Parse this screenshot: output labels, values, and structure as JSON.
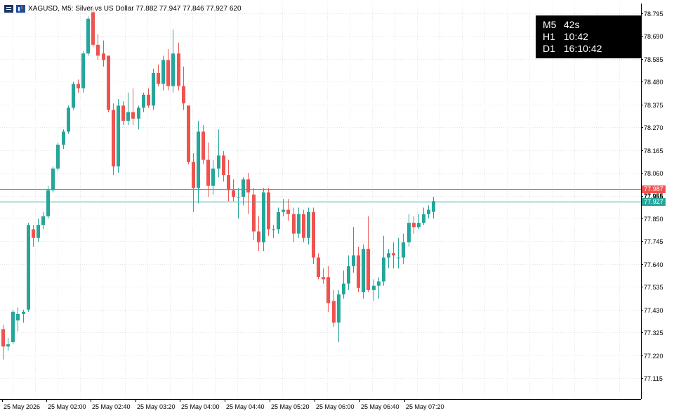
{
  "header": {
    "icons": [
      "menu-icon",
      "chart-icon"
    ],
    "title": "XAGUSD, M5:  Silver vs US Dollar  77.882 77.947 77.846 77.927  620"
  },
  "timer": {
    "rows": [
      {
        "label": "M5",
        "value": "42s"
      },
      {
        "label": "H1",
        "value": "10:42"
      },
      {
        "label": "D1",
        "value": "16:10:42"
      }
    ]
  },
  "price_lines": {
    "ask": {
      "value": "77.987",
      "color": "#ef5350"
    },
    "bid": {
      "value": "77.927",
      "color": "#26a69a"
    },
    "extra_label": "77.955"
  },
  "colors": {
    "bull": "#26a69a",
    "bear": "#ef5350",
    "grid": "#e6e6e6",
    "axis": "#000000",
    "timer_bg": "#000000"
  },
  "chart_data": {
    "type": "candlestick",
    "symbol": "XAGUSD",
    "timeframe": "M5",
    "ylim": [
      77.05,
      78.82
    ],
    "y_ticks": [
      "78.795",
      "78.690",
      "78.585",
      "78.480",
      "78.375",
      "78.270",
      "78.165",
      "78.060",
      "77.955",
      "77.850",
      "77.745",
      "77.640",
      "77.535",
      "77.430",
      "77.325",
      "77.220",
      "77.115"
    ],
    "x_ticks": [
      "25 May 2026",
      "25 May 02:00",
      "25 May 02:40",
      "25 May 03:20",
      "25 May 04:00",
      "25 May 04:40",
      "25 May 05:20",
      "25 May 06:00",
      "25 May 06:40",
      "25 May 07:20"
    ],
    "candles": [
      [
        77.34,
        77.36,
        77.2,
        77.26
      ],
      [
        77.26,
        77.3,
        77.24,
        77.27
      ],
      [
        77.28,
        77.43,
        77.27,
        77.42
      ],
      [
        77.38,
        77.44,
        77.33,
        77.41
      ],
      [
        77.41,
        77.43,
        77.37,
        77.42
      ],
      [
        77.43,
        77.83,
        77.42,
        77.82
      ],
      [
        77.8,
        77.82,
        77.72,
        77.76
      ],
      [
        77.76,
        77.85,
        77.74,
        77.82
      ],
      [
        77.82,
        77.88,
        77.8,
        77.86
      ],
      [
        77.86,
        78.0,
        77.85,
        77.98
      ],
      [
        77.98,
        78.09,
        77.97,
        78.08
      ],
      [
        78.08,
        78.2,
        78.07,
        78.19
      ],
      [
        78.19,
        78.26,
        78.17,
        78.25
      ],
      [
        78.25,
        78.37,
        78.24,
        78.36
      ],
      [
        78.36,
        78.48,
        78.35,
        78.47
      ],
      [
        78.47,
        78.49,
        78.43,
        78.45
      ],
      [
        78.45,
        78.62,
        78.43,
        78.61
      ],
      [
        78.61,
        78.78,
        78.6,
        78.77
      ],
      [
        78.8,
        78.82,
        78.64,
        78.65
      ],
      [
        78.65,
        78.7,
        78.58,
        78.6
      ],
      [
        78.61,
        78.67,
        78.55,
        78.58
      ],
      [
        78.6,
        78.6,
        78.34,
        78.35
      ],
      [
        78.35,
        78.38,
        78.05,
        78.09
      ],
      [
        78.09,
        78.4,
        78.06,
        78.37
      ],
      [
        78.37,
        78.39,
        78.28,
        78.3
      ],
      [
        78.3,
        78.43,
        78.28,
        78.34
      ],
      [
        78.34,
        78.45,
        78.28,
        78.31
      ],
      [
        78.31,
        78.37,
        78.26,
        78.36
      ],
      [
        78.36,
        78.43,
        78.34,
        78.42
      ],
      [
        78.42,
        78.45,
        78.36,
        78.37
      ],
      [
        78.37,
        78.54,
        78.35,
        78.52
      ],
      [
        78.52,
        78.56,
        78.46,
        78.47
      ],
      [
        78.47,
        78.6,
        78.44,
        78.58
      ],
      [
        78.58,
        78.63,
        78.44,
        78.46
      ],
      [
        78.46,
        78.72,
        78.43,
        78.61
      ],
      [
        78.61,
        78.66,
        78.44,
        78.46
      ],
      [
        78.46,
        78.55,
        78.35,
        78.38
      ],
      [
        78.37,
        78.37,
        78.1,
        78.11
      ],
      [
        78.11,
        78.15,
        77.88,
        77.99
      ],
      [
        77.99,
        78.3,
        77.92,
        78.25
      ],
      [
        78.25,
        78.28,
        78.1,
        78.12
      ],
      [
        78.12,
        78.2,
        77.95,
        78.0
      ],
      [
        78.0,
        78.12,
        77.96,
        78.08
      ],
      [
        78.08,
        78.26,
        78.04,
        78.14
      ],
      [
        78.14,
        78.16,
        78.02,
        78.05
      ],
      [
        78.05,
        78.12,
        77.93,
        77.98
      ],
      [
        77.98,
        78.03,
        77.93,
        77.95
      ],
      [
        77.95,
        77.99,
        77.85,
        77.95
      ],
      [
        77.95,
        78.04,
        77.91,
        78.03
      ],
      [
        78.03,
        78.06,
        77.87,
        77.97
      ],
      [
        77.96,
        77.99,
        77.75,
        77.79
      ],
      [
        77.79,
        77.86,
        77.7,
        77.74
      ],
      [
        77.74,
        77.99,
        77.7,
        77.97
      ],
      [
        77.97,
        77.99,
        77.77,
        77.8
      ],
      [
        77.8,
        77.82,
        77.76,
        77.8
      ],
      [
        77.8,
        77.9,
        77.78,
        77.88
      ],
      [
        77.88,
        77.94,
        77.86,
        77.89
      ],
      [
        77.89,
        77.94,
        77.84,
        77.87
      ],
      [
        77.87,
        77.9,
        77.74,
        77.78
      ],
      [
        77.78,
        77.9,
        77.76,
        77.87
      ],
      [
        77.87,
        77.89,
        77.74,
        77.76
      ],
      [
        77.76,
        77.9,
        77.73,
        77.88
      ],
      [
        77.88,
        77.9,
        77.64,
        77.67
      ],
      [
        77.67,
        77.69,
        77.57,
        77.58
      ],
      [
        77.58,
        77.62,
        77.55,
        77.57
      ],
      [
        77.58,
        77.63,
        77.42,
        77.46
      ],
      [
        77.47,
        77.52,
        77.35,
        77.37
      ],
      [
        77.37,
        77.52,
        77.28,
        77.5
      ],
      [
        77.5,
        77.61,
        77.48,
        77.55
      ],
      [
        77.55,
        77.68,
        77.52,
        77.63
      ],
      [
        77.63,
        77.81,
        77.6,
        77.68
      ],
      [
        77.68,
        77.72,
        77.51,
        77.53
      ],
      [
        77.51,
        77.73,
        77.48,
        77.71
      ],
      [
        77.71,
        77.86,
        77.51,
        77.52
      ],
      [
        77.52,
        77.57,
        77.47,
        77.54
      ],
      [
        77.54,
        77.58,
        77.48,
        77.56
      ],
      [
        77.56,
        77.77,
        77.54,
        77.67
      ],
      [
        77.67,
        77.71,
        77.62,
        77.69
      ],
      [
        77.69,
        77.74,
        77.62,
        77.68
      ],
      [
        77.67,
        77.76,
        77.62,
        77.67
      ],
      [
        77.67,
        77.78,
        77.64,
        77.74
      ],
      [
        77.74,
        77.87,
        77.72,
        77.83
      ],
      [
        77.83,
        77.86,
        77.78,
        77.81
      ],
      [
        77.81,
        77.87,
        77.8,
        77.83
      ],
      [
        77.83,
        77.9,
        77.82,
        77.87
      ],
      [
        77.87,
        77.91,
        77.85,
        77.89
      ],
      [
        77.88,
        77.95,
        77.85,
        77.93
      ]
    ]
  }
}
